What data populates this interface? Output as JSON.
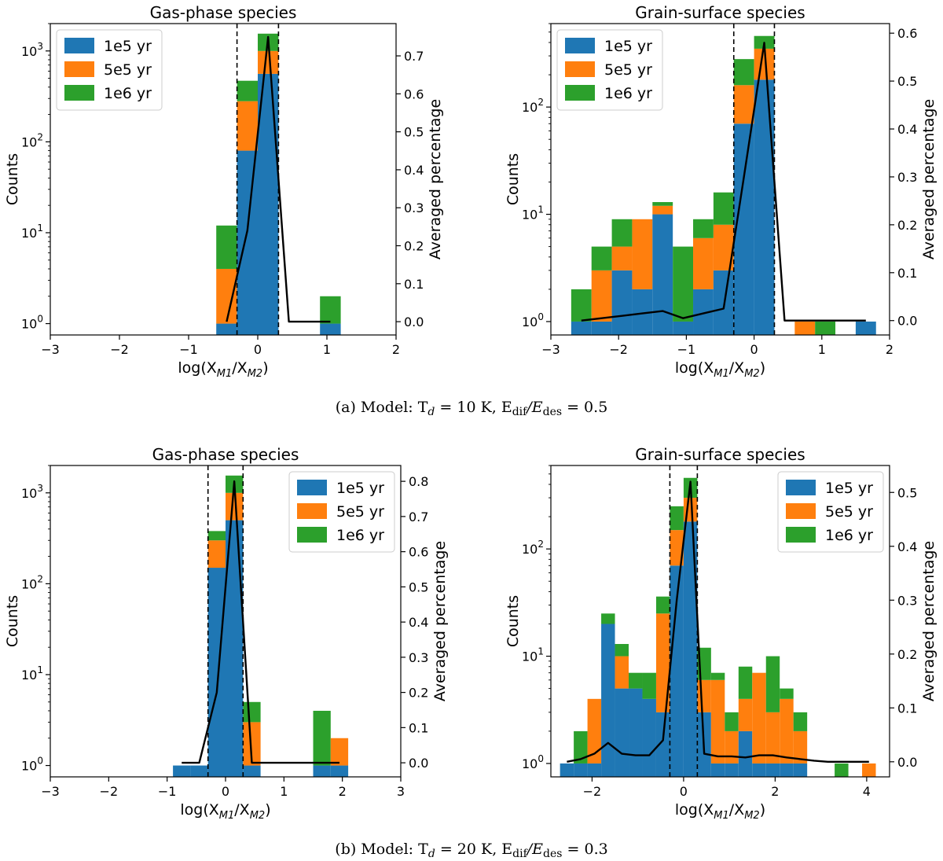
{
  "figure": {
    "caption_a": "(a)  Model: T",
    "caption_a_sub": "d",
    "caption_a_rest": " = 10 K, E",
    "caption_a_sub2": "dif",
    "caption_a_rest2": "/E",
    "caption_a_sub3": "des",
    "caption_a_rest3": " = 0.5",
    "caption_b": "(b)  Model: T",
    "caption_b_sub": "d",
    "caption_b_rest": " = 20 K, E",
    "caption_b_sub2": "dif",
    "caption_b_rest2": "/E",
    "caption_b_sub3": "des",
    "caption_b_rest3": " = 0.3"
  },
  "colors": {
    "series1": "#1f77b4",
    "series2": "#ff7f0e",
    "series3": "#2ca02c",
    "line": "#000000"
  },
  "chart_data": [
    {
      "type": "bar",
      "stacked": true,
      "title": "Gas-phase species",
      "xlabel": "log(X",
      "xlabel_sub": "M1",
      "xlabel_mid": "/X",
      "xlabel_sub2": "M2",
      "xlabel_end": ")",
      "ylabel": "Counts",
      "y2label": "Averaged percentage",
      "legend": [
        "1e5 yr",
        "5e5 yr",
        "1e6 yr"
      ],
      "legend_position": "upper-left",
      "xlim": [
        -3,
        2
      ],
      "xticks": [
        "-3",
        "-2",
        "-1",
        "0",
        "1",
        "2"
      ],
      "ylim_log": [
        0.75,
        2000
      ],
      "yticks": [
        {
          "v": 1,
          "b": "10",
          "e": "0"
        },
        {
          "v": 10,
          "b": "10",
          "e": "1"
        },
        {
          "v": 100,
          "b": "10",
          "e": "2"
        },
        {
          "v": 1000,
          "b": "10",
          "e": "3"
        }
      ],
      "y2lim": [
        -0.035,
        0.785
      ],
      "y2ticks": [
        "0.0",
        "0.1",
        "0.2",
        "0.3",
        "0.4",
        "0.5",
        "0.6",
        "0.7"
      ],
      "dashed_lines": [
        -0.3,
        0.3
      ],
      "bins": [
        {
          "x0": -0.6,
          "x1": -0.3,
          "counts": [
            1,
            4,
            12
          ]
        },
        {
          "x0": -0.3,
          "x1": 0.0,
          "counts": [
            80,
            280,
            470
          ]
        },
        {
          "x0": 0.0,
          "x1": 0.3,
          "counts": [
            560,
            1000,
            1550
          ]
        },
        {
          "x0": 0.9,
          "x1": 1.2,
          "counts": [
            1,
            1,
            2
          ]
        }
      ],
      "line": {
        "x": [
          -0.45,
          -0.15,
          0.15,
          0.45,
          0.75,
          1.05
        ],
        "y": [
          0.0,
          0.24,
          0.75,
          0.0,
          0.0,
          0.0
        ]
      }
    },
    {
      "type": "bar",
      "stacked": true,
      "title": "Grain-surface species",
      "xlabel": "log(X",
      "xlabel_sub": "M1",
      "xlabel_mid": "/X",
      "xlabel_sub2": "M2",
      "xlabel_end": ")",
      "ylabel": "Counts",
      "y2label": "Averaged percentage",
      "legend": [
        "1e5 yr",
        "5e5 yr",
        "1e6 yr"
      ],
      "legend_position": "upper-left",
      "xlim": [
        -3,
        2
      ],
      "xticks": [
        "-3",
        "-2",
        "-1",
        "0",
        "1",
        "2"
      ],
      "ylim_log": [
        0.75,
        600
      ],
      "yticks": [
        {
          "v": 1,
          "b": "10",
          "e": "0"
        },
        {
          "v": 10,
          "b": "10",
          "e": "1"
        },
        {
          "v": 100,
          "b": "10",
          "e": "2"
        }
      ],
      "y2lim": [
        -0.03,
        0.62
      ],
      "y2ticks": [
        "0.0",
        "0.1",
        "0.2",
        "0.3",
        "0.4",
        "0.5",
        "0.6"
      ],
      "dashed_lines": [
        -0.3,
        0.3
      ],
      "bins": [
        {
          "x0": -2.7,
          "x1": -2.4,
          "counts": [
            1,
            1,
            2
          ]
        },
        {
          "x0": -2.4,
          "x1": -2.1,
          "counts": [
            1,
            3,
            5
          ]
        },
        {
          "x0": -2.1,
          "x1": -1.8,
          "counts": [
            3,
            5,
            9
          ]
        },
        {
          "x0": -1.8,
          "x1": -1.5,
          "counts": [
            2,
            9,
            9
          ]
        },
        {
          "x0": -1.5,
          "x1": -1.2,
          "counts": [
            10,
            12,
            13
          ]
        },
        {
          "x0": -1.2,
          "x1": -0.9,
          "counts": [
            1,
            1,
            5
          ]
        },
        {
          "x0": -0.9,
          "x1": -0.6,
          "counts": [
            2,
            6,
            9
          ]
        },
        {
          "x0": -0.6,
          "x1": -0.3,
          "counts": [
            3,
            8,
            16
          ]
        },
        {
          "x0": -0.3,
          "x1": 0.0,
          "counts": [
            70,
            160,
            280
          ]
        },
        {
          "x0": 0.0,
          "x1": 0.3,
          "counts": [
            180,
            350,
            460
          ]
        },
        {
          "x0": 0.6,
          "x1": 0.9,
          "counts": [
            0,
            1,
            1
          ]
        },
        {
          "x0": 0.9,
          "x1": 1.2,
          "counts": [
            0,
            0,
            1
          ]
        },
        {
          "x0": 1.5,
          "x1": 1.8,
          "counts": [
            1,
            1,
            1
          ]
        }
      ],
      "line": {
        "x": [
          -2.55,
          -2.25,
          -1.95,
          -1.65,
          -1.35,
          -1.05,
          -0.75,
          -0.45,
          -0.15,
          0.15,
          0.45,
          0.75,
          1.05,
          1.35,
          1.65
        ],
        "y": [
          0.0,
          0.005,
          0.01,
          0.015,
          0.02,
          0.005,
          0.015,
          0.025,
          0.3,
          0.58,
          0.0,
          0.0,
          0.0,
          0.0,
          0.0
        ]
      }
    },
    {
      "type": "bar",
      "stacked": true,
      "title": "Gas-phase species",
      "xlabel": "log(X",
      "xlabel_sub": "M1",
      "xlabel_mid": "/X",
      "xlabel_sub2": "M2",
      "xlabel_end": ")",
      "ylabel": "Counts",
      "y2label": "Averaged percentage",
      "legend": [
        "1e5 yr",
        "5e5 yr",
        "1e6 yr"
      ],
      "legend_position": "upper-right",
      "xlim": [
        -3,
        3
      ],
      "xticks": [
        "-3",
        "-2",
        "-1",
        "0",
        "1",
        "2",
        "3"
      ],
      "ylim_log": [
        0.75,
        2000
      ],
      "yticks": [
        {
          "v": 1,
          "b": "10",
          "e": "0"
        },
        {
          "v": 10,
          "b": "10",
          "e": "1"
        },
        {
          "v": 100,
          "b": "10",
          "e": "2"
        },
        {
          "v": 1000,
          "b": "10",
          "e": "3"
        }
      ],
      "y2lim": [
        -0.04,
        0.845
      ],
      "y2ticks": [
        "0.0",
        "0.1",
        "0.2",
        "0.3",
        "0.4",
        "0.5",
        "0.6",
        "0.7",
        "0.8"
      ],
      "dashed_lines": [
        -0.3,
        0.3
      ],
      "bins": [
        {
          "x0": -0.9,
          "x1": -0.6,
          "counts": [
            1,
            1,
            1
          ]
        },
        {
          "x0": -0.6,
          "x1": -0.3,
          "counts": [
            1,
            1,
            1
          ]
        },
        {
          "x0": -0.3,
          "x1": 0.0,
          "counts": [
            150,
            300,
            380
          ]
        },
        {
          "x0": 0.0,
          "x1": 0.3,
          "counts": [
            500,
            1000,
            1550
          ]
        },
        {
          "x0": 0.3,
          "x1": 0.6,
          "counts": [
            1,
            3,
            5
          ]
        },
        {
          "x0": 1.5,
          "x1": 1.8,
          "counts": [
            1,
            1,
            4
          ]
        },
        {
          "x0": 1.8,
          "x1": 2.1,
          "counts": [
            1,
            2,
            2
          ]
        }
      ],
      "line": {
        "x": [
          -0.75,
          -0.45,
          -0.15,
          0.15,
          0.45,
          0.75,
          1.05,
          1.35,
          1.65,
          1.95
        ],
        "y": [
          0.0,
          0.0,
          0.2,
          0.8,
          0.0,
          0.0,
          0.0,
          0.0,
          0.0,
          0.0
        ]
      }
    },
    {
      "type": "bar",
      "stacked": true,
      "title": "Grain-surface species",
      "xlabel": "log(X",
      "xlabel_sub": "M1",
      "xlabel_mid": "/X",
      "xlabel_sub2": "M2",
      "xlabel_end": ")",
      "ylabel": "Counts",
      "y2label": "Averaged percentage",
      "legend": [
        "1e5 yr",
        "5e5 yr",
        "1e6 yr"
      ],
      "legend_position": "upper-right",
      "xlim": [
        -2.9,
        4.5
      ],
      "xticks": [
        "-2",
        "0",
        "2",
        "4"
      ],
      "xtick_values": [
        -2,
        0,
        2,
        4
      ],
      "ylim_log": [
        0.75,
        600
      ],
      "yticks": [
        {
          "v": 1,
          "b": "10",
          "e": "0"
        },
        {
          "v": 10,
          "b": "10",
          "e": "1"
        },
        {
          "v": 100,
          "b": "10",
          "e": "2"
        }
      ],
      "y2lim": [
        -0.028,
        0.55
      ],
      "y2ticks": [
        "0.0",
        "0.1",
        "0.2",
        "0.3",
        "0.4",
        "0.5"
      ],
      "dashed_lines": [
        -0.3,
        0.3
      ],
      "bins": [
        {
          "x0": -2.7,
          "x1": -2.4,
          "counts": [
            1,
            1,
            1
          ]
        },
        {
          "x0": -2.4,
          "x1": -2.1,
          "counts": [
            1,
            1,
            2
          ]
        },
        {
          "x0": -2.1,
          "x1": -1.8,
          "counts": [
            1,
            4,
            4
          ]
        },
        {
          "x0": -1.8,
          "x1": -1.5,
          "counts": [
            20,
            20,
            25
          ]
        },
        {
          "x0": -1.5,
          "x1": -1.2,
          "counts": [
            5,
            10,
            13
          ]
        },
        {
          "x0": -1.2,
          "x1": -0.9,
          "counts": [
            5,
            5,
            7
          ]
        },
        {
          "x0": -0.9,
          "x1": -0.6,
          "counts": [
            4,
            4,
            7
          ]
        },
        {
          "x0": -0.6,
          "x1": -0.3,
          "counts": [
            3,
            25,
            36
          ]
        },
        {
          "x0": -0.3,
          "x1": 0.0,
          "counts": [
            70,
            150,
            250
          ]
        },
        {
          "x0": 0.0,
          "x1": 0.3,
          "counts": [
            180,
            300,
            460
          ]
        },
        {
          "x0": 0.3,
          "x1": 0.6,
          "counts": [
            3,
            6,
            12
          ]
        },
        {
          "x0": 0.6,
          "x1": 0.9,
          "counts": [
            1,
            6,
            7
          ]
        },
        {
          "x0": 0.9,
          "x1": 1.2,
          "counts": [
            1,
            2,
            3
          ]
        },
        {
          "x0": 1.2,
          "x1": 1.5,
          "counts": [
            2,
            4,
            8
          ]
        },
        {
          "x0": 1.5,
          "x1": 1.8,
          "counts": [
            1,
            7,
            7
          ]
        },
        {
          "x0": 1.8,
          "x1": 2.1,
          "counts": [
            1,
            3,
            10
          ]
        },
        {
          "x0": 2.1,
          "x1": 2.4,
          "counts": [
            1,
            4,
            5
          ]
        },
        {
          "x0": 2.4,
          "x1": 2.7,
          "counts": [
            1,
            2,
            3
          ]
        },
        {
          "x0": 3.3,
          "x1": 3.6,
          "counts": [
            0,
            0,
            1
          ]
        },
        {
          "x0": 3.9,
          "x1": 4.2,
          "counts": [
            0,
            1,
            1
          ]
        }
      ],
      "line": {
        "x": [
          -2.55,
          -2.25,
          -1.95,
          -1.65,
          -1.35,
          -1.05,
          -0.75,
          -0.45,
          -0.15,
          0.15,
          0.45,
          0.75,
          1.05,
          1.35,
          1.65,
          1.95,
          2.25,
          2.55,
          2.85,
          3.15,
          3.45,
          3.75,
          4.05
        ],
        "y": [
          0.0,
          0.005,
          0.015,
          0.035,
          0.015,
          0.012,
          0.012,
          0.04,
          0.3,
          0.52,
          0.015,
          0.01,
          0.01,
          0.008,
          0.012,
          0.012,
          0.008,
          0.005,
          0.002,
          0.0,
          0.0,
          0.0,
          0.0
        ]
      }
    }
  ]
}
